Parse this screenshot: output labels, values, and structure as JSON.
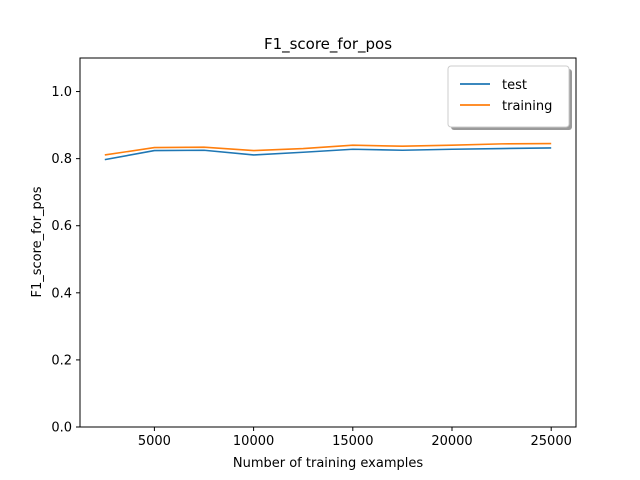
{
  "chart_data": {
    "type": "line",
    "title": "F1_score_for_pos",
    "xlabel": "Number of training examples",
    "ylabel": "F1_score_for_pos",
    "xlim": [
      1250,
      26250
    ],
    "ylim": [
      0.0,
      1.1
    ],
    "xticks": [
      5000,
      10000,
      15000,
      20000,
      25000
    ],
    "yticks": [
      0.0,
      0.2,
      0.4,
      0.6,
      0.8,
      1.0
    ],
    "xtick_labels": [
      "5000",
      "10000",
      "15000",
      "20000",
      "25000"
    ],
    "ytick_labels": [
      "0.0",
      "0.2",
      "0.4",
      "0.6",
      "0.8",
      "1.0"
    ],
    "grid": false,
    "legend_position": "top-right",
    "x": [
      2500,
      5000,
      7500,
      10000,
      12500,
      15000,
      17500,
      20000,
      22500,
      25000
    ],
    "series": [
      {
        "name": "test",
        "color": "#1f77b4",
        "values": [
          0.797,
          0.824,
          0.825,
          0.811,
          0.819,
          0.828,
          0.825,
          0.828,
          0.83,
          0.832
        ]
      },
      {
        "name": "training",
        "color": "#ff7f0e",
        "values": [
          0.811,
          0.833,
          0.834,
          0.824,
          0.83,
          0.84,
          0.837,
          0.84,
          0.844,
          0.845
        ]
      }
    ]
  }
}
